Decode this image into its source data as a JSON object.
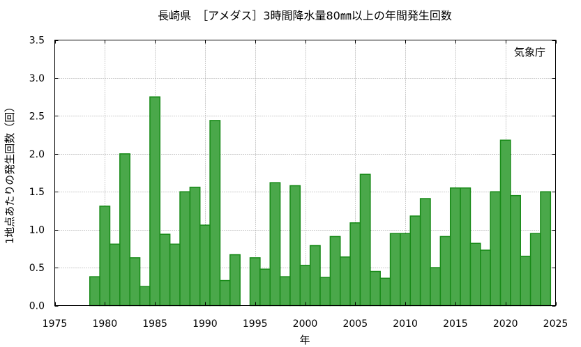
{
  "chart_data": {
    "type": "bar",
    "title": "長崎県　［アメダス］3時間降水量80㎜以上の年間発生回数",
    "source_note": "気象庁",
    "xlabel": "年",
    "ylabel": "1地点あたりの発生回数（回）",
    "xlim": [
      1975,
      2025
    ],
    "ylim": [
      0,
      3.5
    ],
    "x_ticks": [
      1975,
      1980,
      1985,
      1990,
      1995,
      2000,
      2005,
      2010,
      2015,
      2020,
      2025
    ],
    "y_ticks": [
      "0.0",
      "0.5",
      "1.0",
      "1.5",
      "2.0",
      "2.5",
      "3.0",
      "3.5"
    ],
    "grid": true,
    "bar_color": "#4aa84a",
    "bar_edge_color": "#178a17",
    "years": [
      1979,
      1980,
      1981,
      1982,
      1983,
      1984,
      1985,
      1986,
      1987,
      1988,
      1989,
      1990,
      1991,
      1992,
      1993,
      1994,
      1995,
      1996,
      1997,
      1998,
      1999,
      2000,
      2001,
      2002,
      2003,
      2004,
      2005,
      2006,
      2007,
      2008,
      2009,
      2010,
      2011,
      2012,
      2013,
      2014,
      2015,
      2016,
      2017,
      2018,
      2019,
      2020,
      2021,
      2022,
      2023,
      2024
    ],
    "values": [
      0.38,
      1.31,
      0.81,
      2.0,
      0.63,
      0.25,
      2.75,
      0.94,
      0.81,
      1.5,
      1.56,
      1.06,
      2.44,
      0.33,
      0.67,
      0,
      0.63,
      0.48,
      1.62,
      0.38,
      1.58,
      0.53,
      0.79,
      0.37,
      0.91,
      0.64,
      1.09,
      1.73,
      0.45,
      0.36,
      0.95,
      0.95,
      1.18,
      1.41,
      0.5,
      0.91,
      1.55,
      1.55,
      0.82,
      0.73,
      1.5,
      2.18,
      1.45,
      0.65,
      0.95,
      1.5
    ]
  }
}
